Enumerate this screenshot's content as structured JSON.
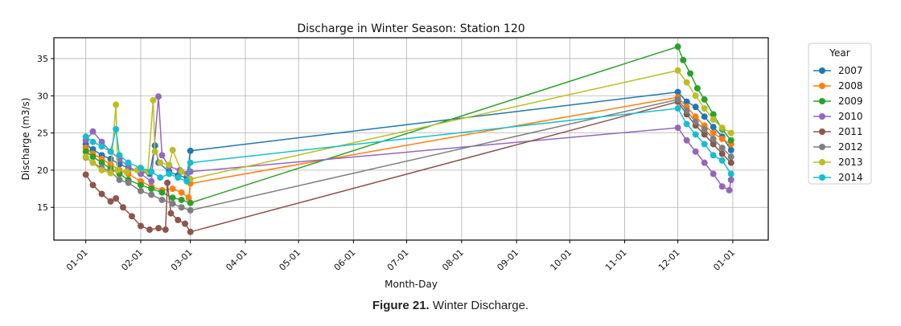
{
  "chart_data": {
    "type": "line",
    "title": "Discharge in Winter Season: Station 120",
    "xlabel": "Month-Day",
    "ylabel": "Discharge (m3/s)",
    "x_unit": "day_of_year",
    "xlim": [
      -17,
      386
    ],
    "ylim": [
      10.6,
      37.8
    ],
    "grid": true,
    "x_ticks": [
      {
        "value": 1,
        "label": "01-01"
      },
      {
        "value": 32,
        "label": "02-01"
      },
      {
        "value": 60,
        "label": "03-01"
      },
      {
        "value": 91,
        "label": "04-01"
      },
      {
        "value": 121,
        "label": "05-01"
      },
      {
        "value": 152,
        "label": "06-01"
      },
      {
        "value": 182,
        "label": "07-01"
      },
      {
        "value": 213,
        "label": "08-01"
      },
      {
        "value": 244,
        "label": "09-01"
      },
      {
        "value": 274,
        "label": "10-01"
      },
      {
        "value": 305,
        "label": "11-01"
      },
      {
        "value": 335,
        "label": "12-01"
      },
      {
        "value": 366,
        "label": "01-01"
      }
    ],
    "y_ticks": [
      15,
      20,
      25,
      30,
      35
    ],
    "legend": {
      "title": "Year",
      "placement": "outside-right"
    },
    "series": [
      {
        "name": "2007",
        "color": "#1f77b4",
        "points": [
          [
            1,
            23.5
          ],
          [
            5,
            22.8
          ],
          [
            10,
            22
          ],
          [
            15,
            21.5
          ],
          [
            20,
            20.8
          ],
          [
            25,
            20.3
          ],
          [
            32,
            19.8
          ],
          [
            37,
            19.5
          ],
          [
            40,
            23.3
          ],
          [
            42,
            21
          ],
          [
            48,
            19.8
          ],
          [
            53,
            19.3
          ],
          [
            58,
            19
          ],
          [
            60,
            22.6
          ],
          [
            335,
            30.5
          ],
          [
            340,
            29.2
          ],
          [
            345,
            28.5
          ],
          [
            350,
            27.2
          ],
          [
            355,
            25.8
          ],
          [
            360,
            24.5
          ],
          [
            365,
            22.7
          ]
        ]
      },
      {
        "name": "2008",
        "color": "#ff7f0e",
        "points": [
          [
            1,
            23
          ],
          [
            5,
            22.2
          ],
          [
            10,
            21.5
          ],
          [
            15,
            20.8
          ],
          [
            20,
            20
          ],
          [
            25,
            19.5
          ],
          [
            32,
            18.5
          ],
          [
            38,
            17.8
          ],
          [
            44,
            17.3
          ],
          [
            50,
            17.5
          ],
          [
            55,
            17
          ],
          [
            59,
            16.3
          ],
          [
            60,
            18.2
          ],
          [
            335,
            29.8
          ],
          [
            340,
            28.5
          ],
          [
            345,
            27.2
          ],
          [
            350,
            26
          ],
          [
            355,
            25
          ],
          [
            360,
            24.2
          ],
          [
            365,
            23.5
          ]
        ]
      },
      {
        "name": "2009",
        "color": "#2ca02c",
        "points": [
          [
            1,
            22.5
          ],
          [
            5,
            21.8
          ],
          [
            10,
            21
          ],
          [
            15,
            20.2
          ],
          [
            20,
            19.5
          ],
          [
            25,
            18.7
          ],
          [
            32,
            18
          ],
          [
            38,
            17.5
          ],
          [
            44,
            17
          ],
          [
            50,
            16.3
          ],
          [
            55,
            16
          ],
          [
            60,
            15.6
          ],
          [
            335,
            36.6
          ],
          [
            338,
            34.8
          ],
          [
            342,
            33
          ],
          [
            346,
            31
          ],
          [
            350,
            29.5
          ],
          [
            355,
            27.5
          ],
          [
            360,
            25.5
          ],
          [
            365,
            24
          ]
        ]
      },
      {
        "name": "2010",
        "color": "#9467bd",
        "points": [
          [
            1,
            24
          ],
          [
            5,
            25.2
          ],
          [
            10,
            23.8
          ],
          [
            15,
            22.5
          ],
          [
            20,
            21.5
          ],
          [
            25,
            20.5
          ],
          [
            32,
            19.5
          ],
          [
            38,
            18.5
          ],
          [
            42,
            29.9
          ],
          [
            44,
            22
          ],
          [
            48,
            20.5
          ],
          [
            54,
            20
          ],
          [
            58,
            19.5
          ],
          [
            60,
            19.8
          ],
          [
            335,
            25.7
          ],
          [
            340,
            24
          ],
          [
            345,
            22.5
          ],
          [
            350,
            21
          ],
          [
            355,
            19.5
          ],
          [
            360,
            17.8
          ],
          [
            364,
            17.3
          ],
          [
            365,
            18.7
          ]
        ]
      },
      {
        "name": "2011",
        "color": "#8c564b",
        "points": [
          [
            1,
            19.4
          ],
          [
            5,
            18
          ],
          [
            10,
            16.8
          ],
          [
            15,
            15.8
          ],
          [
            18,
            16.2
          ],
          [
            22,
            15
          ],
          [
            27,
            13.8
          ],
          [
            32,
            12.5
          ],
          [
            37,
            12
          ],
          [
            42,
            12.2
          ],
          [
            46,
            12
          ],
          [
            47,
            18.3
          ],
          [
            49,
            14.2
          ],
          [
            53,
            13.3
          ],
          [
            57,
            12.8
          ],
          [
            60,
            11.7
          ],
          [
            335,
            29.2
          ],
          [
            340,
            27.5
          ],
          [
            345,
            26
          ],
          [
            350,
            24.8
          ],
          [
            355,
            23.5
          ],
          [
            360,
            22.2
          ],
          [
            365,
            21
          ]
        ]
      },
      {
        "name": "2012",
        "color": "#7f7f7f",
        "points": [
          [
            1,
            21.7
          ],
          [
            5,
            21
          ],
          [
            10,
            20.3
          ],
          [
            15,
            19.8
          ],
          [
            20,
            18.7
          ],
          [
            25,
            18.3
          ],
          [
            32,
            17.2
          ],
          [
            38,
            16.7
          ],
          [
            44,
            16
          ],
          [
            50,
            15.5
          ],
          [
            55,
            15
          ],
          [
            60,
            14.6
          ],
          [
            335,
            29.5
          ],
          [
            340,
            28
          ],
          [
            345,
            26.5
          ],
          [
            350,
            25.5
          ],
          [
            355,
            24.2
          ],
          [
            360,
            23
          ],
          [
            365,
            21.8
          ]
        ]
      },
      {
        "name": "2013",
        "color": "#bcbd22",
        "points": [
          [
            1,
            21.8
          ],
          [
            5,
            21
          ],
          [
            10,
            20
          ],
          [
            15,
            19.6
          ],
          [
            18,
            28.8
          ],
          [
            19,
            20
          ],
          [
            24,
            19.8
          ],
          [
            30,
            20
          ],
          [
            36,
            19.8
          ],
          [
            39,
            29.4
          ],
          [
            40,
            22.5
          ],
          [
            43,
            21
          ],
          [
            48,
            20.7
          ],
          [
            50,
            22.7
          ],
          [
            55,
            19.8
          ],
          [
            60,
            18.8
          ],
          [
            335,
            33.4
          ],
          [
            340,
            31.8
          ],
          [
            345,
            30
          ],
          [
            350,
            28.3
          ],
          [
            355,
            26.8
          ],
          [
            360,
            25.7
          ],
          [
            365,
            25
          ]
        ]
      },
      {
        "name": "2014",
        "color": "#17becf",
        "points": [
          [
            1,
            24.5
          ],
          [
            5,
            23.8
          ],
          [
            10,
            23.2
          ],
          [
            15,
            22.5
          ],
          [
            18,
            25.5
          ],
          [
            20,
            22
          ],
          [
            25,
            21
          ],
          [
            32,
            20.3
          ],
          [
            38,
            19.8
          ],
          [
            43,
            19
          ],
          [
            48,
            19.5
          ],
          [
            53,
            19
          ],
          [
            58,
            18.5
          ],
          [
            60,
            21
          ],
          [
            335,
            28.3
          ],
          [
            340,
            26.2
          ],
          [
            345,
            24.8
          ],
          [
            350,
            23.5
          ],
          [
            355,
            22
          ],
          [
            360,
            21.3
          ],
          [
            365,
            19.5
          ]
        ]
      }
    ]
  },
  "caption": {
    "label": "Figure 21.",
    "text": " Winter Discharge."
  }
}
